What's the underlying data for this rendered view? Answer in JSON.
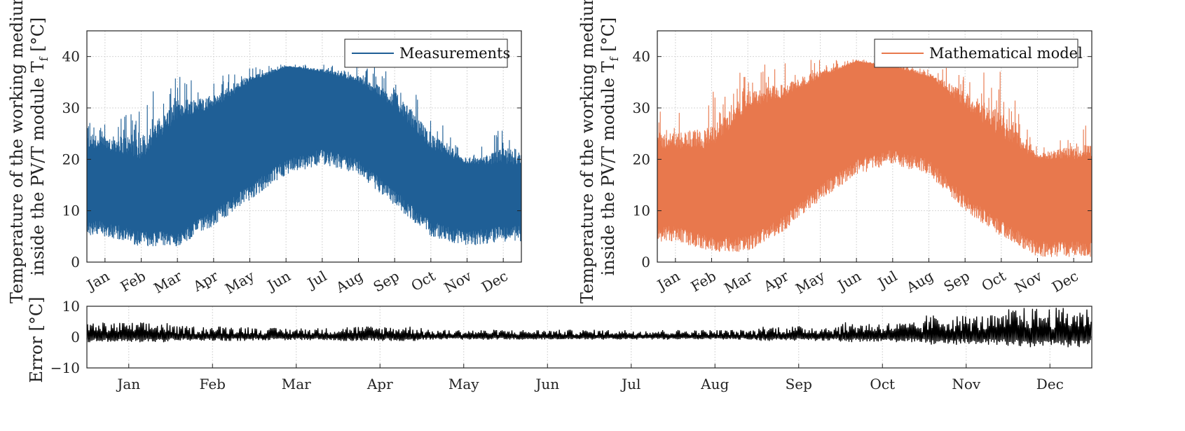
{
  "chart_data": [
    {
      "type": "line",
      "id": "measurements",
      "ylabel_line1": "Temperature of the working medium",
      "ylabel_line2": "inside the PV/T module T",
      "ylabel_sub": "f",
      "ylabel_unit": " [°C]",
      "ylim": [
        0,
        45
      ],
      "yticks": [
        0,
        10,
        20,
        30,
        40
      ],
      "grid": true,
      "legend_position": "top-right",
      "series": [
        {
          "name": "Measurements",
          "color": "#1f5f96",
          "monthly_low": [
            8,
            6,
            6,
            10,
            15,
            20,
            22,
            20,
            14,
            8,
            6,
            7
          ],
          "monthly_high": [
            22,
            20,
            28,
            30,
            35,
            38,
            37,
            35,
            30,
            22,
            19,
            19
          ],
          "monthly_peak": [
            28,
            32,
            37,
            36,
            38,
            38.5,
            38.5,
            38,
            38,
            30,
            20,
            27
          ]
        }
      ],
      "months": [
        "Jan",
        "Feb",
        "Mar",
        "Apr",
        "May",
        "Jun",
        "Jul",
        "Aug",
        "Sep",
        "Oct",
        "Nov",
        "Dec"
      ]
    },
    {
      "type": "line",
      "id": "model",
      "ylabel_line1": "Temperature of the working medium",
      "ylabel_line2": "inside the PV/T module T",
      "ylabel_sub": "f",
      "ylabel_unit": " [°C]",
      "ylim": [
        0,
        45
      ],
      "yticks": [
        0,
        10,
        20,
        30,
        40
      ],
      "grid": true,
      "legend_position": "top-right",
      "series": [
        {
          "name": "Mathematical model",
          "color": "#e8784d",
          "monthly_low": [
            7,
            5,
            5,
            9,
            15,
            20,
            22,
            20,
            13,
            8,
            4,
            4
          ],
          "monthly_high": [
            22,
            22,
            30,
            32,
            36,
            39,
            38,
            36,
            30,
            24,
            20,
            20
          ],
          "monthly_peak": [
            30,
            33,
            38,
            39,
            39.5,
            39.5,
            39,
            38,
            38,
            38,
            22,
            27
          ]
        }
      ],
      "months": [
        "Jan",
        "Feb",
        "Mar",
        "Apr",
        "May",
        "Jun",
        "Jul",
        "Aug",
        "Sep",
        "Oct",
        "Nov",
        "Dec"
      ]
    },
    {
      "type": "line",
      "id": "error",
      "ylabel": "Error [°C]",
      "ylim": [
        -10,
        10
      ],
      "yticks": [
        -10,
        0,
        10
      ],
      "grid": true,
      "series": [
        {
          "name": "Error",
          "color": "#000000",
          "monthly_amp": [
            4,
            3,
            2.5,
            3,
            2,
            2,
            2,
            2,
            3,
            4,
            6,
            8
          ]
        }
      ],
      "months": [
        "Jan",
        "Feb",
        "Mar",
        "Apr",
        "May",
        "Jun",
        "Jul",
        "Aug",
        "Sep",
        "Oct",
        "Nov",
        "Dec"
      ]
    }
  ]
}
